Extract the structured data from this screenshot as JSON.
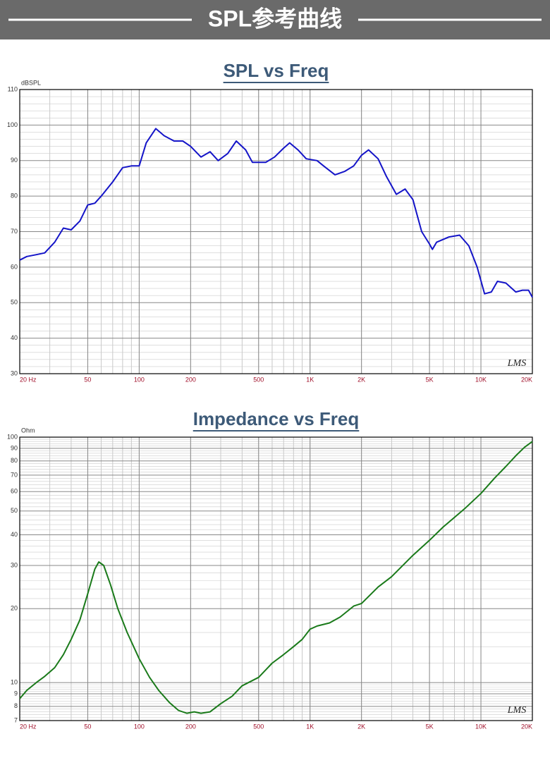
{
  "banner": {
    "title": "SPL参考曲线"
  },
  "chart_data": [
    {
      "type": "line",
      "title": "SPL vs Freq",
      "ylabel": "dBSPL",
      "annotation": "LMS",
      "xscale": "log",
      "yscale": "linear",
      "grid": true,
      "xlim": [
        20,
        20000
      ],
      "ylim": [
        30,
        110
      ],
      "xticks": [
        {
          "value": 20,
          "label": "20 Hz"
        },
        50,
        100,
        200,
        500,
        {
          "value": 1000,
          "label": "1K"
        },
        {
          "value": 2000,
          "label": "2K"
        },
        {
          "value": 5000,
          "label": "5K"
        },
        {
          "value": 10000,
          "label": "10K"
        },
        {
          "value": 20000,
          "label": "20K"
        }
      ],
      "yticks": [
        30,
        40,
        50,
        60,
        70,
        80,
        90,
        100,
        110
      ],
      "x": [
        20,
        22,
        25,
        28,
        32,
        36,
        40,
        45,
        50,
        55,
        60,
        70,
        80,
        90,
        100,
        110,
        125,
        140,
        160,
        180,
        200,
        230,
        260,
        290,
        330,
        370,
        420,
        460,
        500,
        550,
        620,
        700,
        760,
        850,
        950,
        1100,
        1200,
        1400,
        1600,
        1800,
        2000,
        2200,
        2500,
        2800,
        3200,
        3600,
        4000,
        4500,
        5000,
        5200,
        5500,
        6500,
        7500,
        8500,
        9500,
        10500,
        11500,
        12500,
        14000,
        16000,
        17500,
        19000,
        20000
      ],
      "series": [
        {
          "color": "#1414c8",
          "values": [
            62,
            63,
            63.5,
            64,
            67,
            71,
            70.5,
            73,
            77.5,
            78,
            80,
            84,
            88,
            88.5,
            88.5,
            95,
            99,
            97,
            95.5,
            95.5,
            94,
            91,
            92.5,
            90,
            92,
            95.5,
            93,
            89.5,
            89.5,
            89.5,
            91,
            93.5,
            95,
            93,
            90.5,
            90,
            88.5,
            86,
            87,
            88.5,
            91.5,
            93,
            90.5,
            85.5,
            80.5,
            82,
            79,
            70,
            66.5,
            65,
            67,
            68.5,
            69,
            66,
            60,
            52.5,
            53,
            56,
            55.5,
            53,
            53.5,
            53.5,
            51.5
          ]
        }
      ]
    },
    {
      "type": "line",
      "title": "Impedance vs Freq",
      "ylabel": "Ohm",
      "annotation": "LMS",
      "xscale": "log",
      "yscale": "log",
      "grid": true,
      "xlim": [
        20,
        20000
      ],
      "ylim": [
        7,
        100
      ],
      "xticks": [
        {
          "value": 20,
          "label": "20 Hz"
        },
        50,
        100,
        200,
        500,
        {
          "value": 1000,
          "label": "1K"
        },
        {
          "value": 2000,
          "label": "2K"
        },
        {
          "value": 5000,
          "label": "5K"
        },
        {
          "value": 10000,
          "label": "10K"
        },
        {
          "value": 20000,
          "label": "20K"
        }
      ],
      "yticks": [
        7,
        8,
        9,
        10,
        20,
        30,
        40,
        50,
        60,
        70,
        80,
        90,
        100
      ],
      "x": [
        20,
        22,
        25,
        28,
        32,
        36,
        40,
        45,
        50,
        55,
        58,
        62,
        68,
        75,
        85,
        100,
        115,
        130,
        150,
        170,
        190,
        210,
        230,
        260,
        300,
        350,
        400,
        500,
        600,
        700,
        800,
        900,
        1000,
        1100,
        1300,
        1500,
        1800,
        2000,
        2500,
        3000,
        4000,
        5000,
        6000,
        8000,
        10000,
        12000,
        14000,
        16000,
        18000,
        20000
      ],
      "series": [
        {
          "color": "#1a7a1a",
          "values": [
            8.6,
            9.3,
            10,
            10.6,
            11.5,
            13,
            15,
            18,
            23,
            29,
            31,
            30,
            25,
            20,
            16,
            12.5,
            10.5,
            9.3,
            8.3,
            7.7,
            7.5,
            7.6,
            7.5,
            7.6,
            8.2,
            8.8,
            9.7,
            10.5,
            12,
            13,
            14,
            15,
            16.5,
            17,
            17.5,
            18.5,
            20.5,
            21,
            24.5,
            27,
            33,
            38,
            43,
            51,
            59,
            68,
            76,
            84,
            91,
            96
          ]
        }
      ]
    }
  ]
}
